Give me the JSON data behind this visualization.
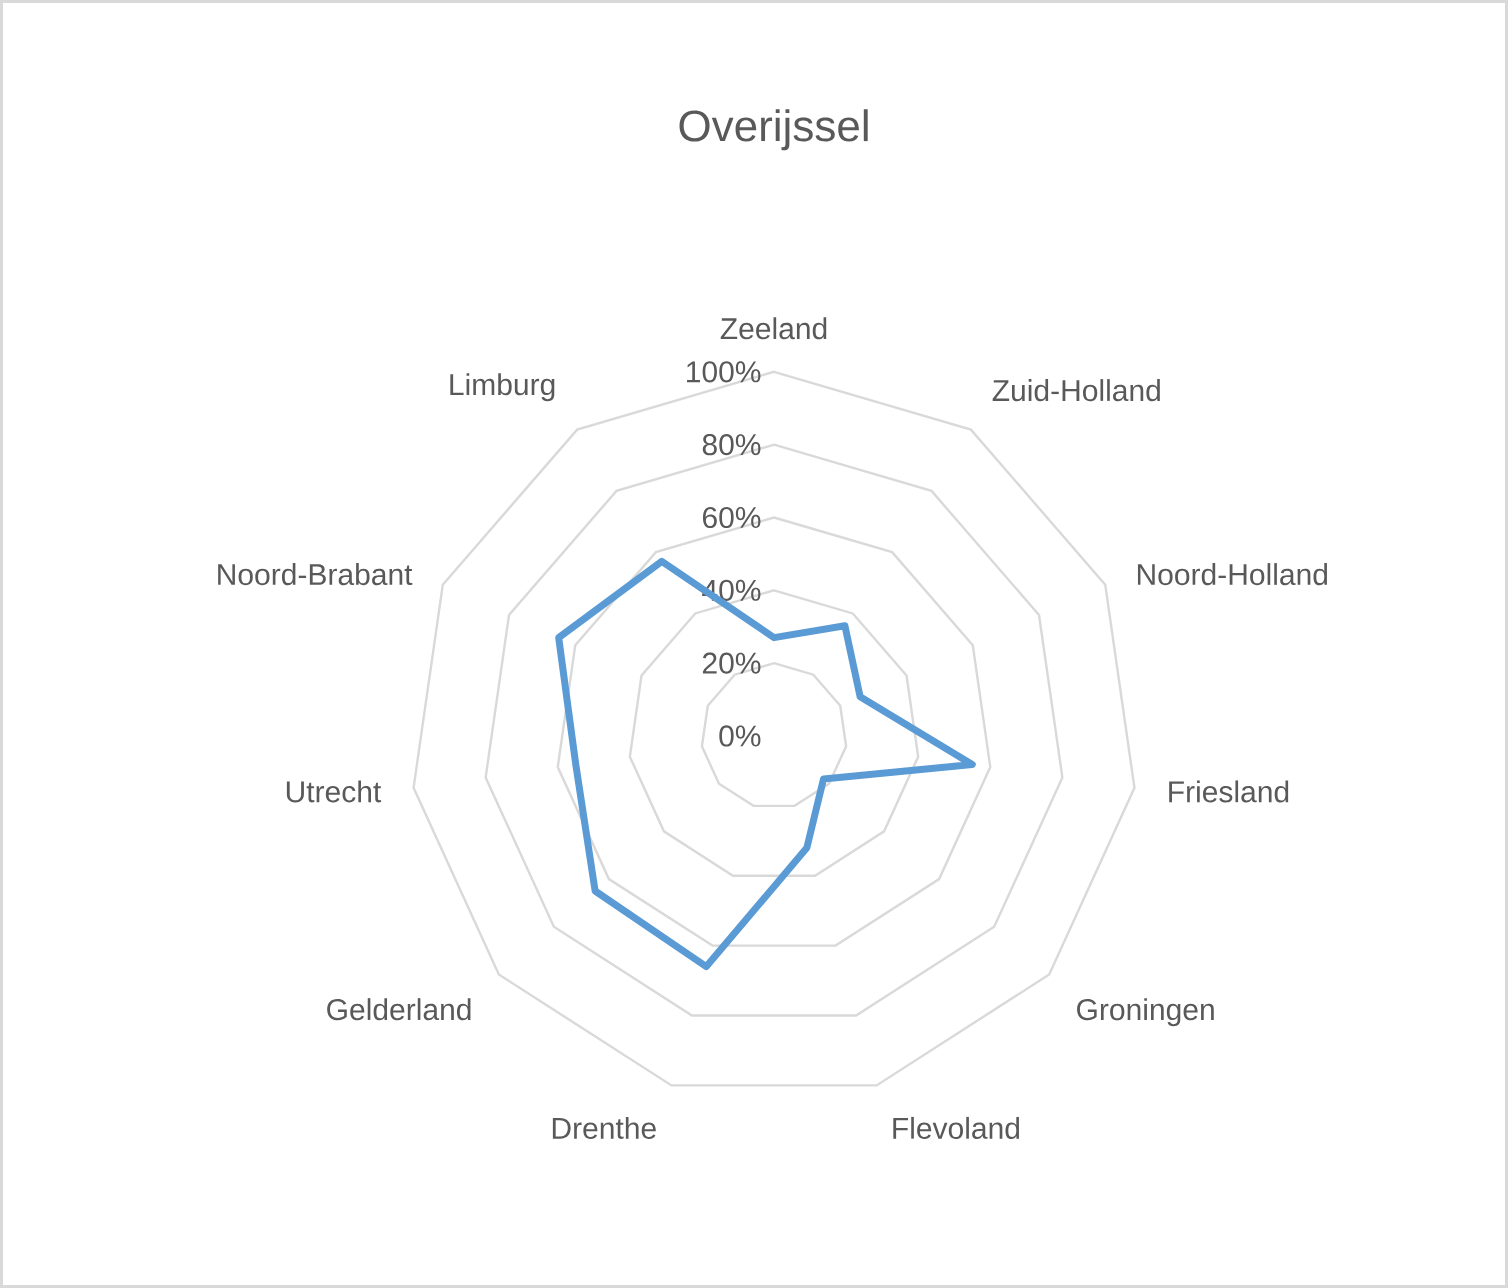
{
  "chart_data": {
    "type": "radar",
    "title": "Overijssel",
    "categories": [
      "Zeeland",
      "Zuid-Holland",
      "Noord-Holland",
      "Friesland",
      "Groningen",
      "Flevoland",
      "Drenthe",
      "Gelderland",
      "Utrecht",
      "Noord-Brabant",
      "Limburg"
    ],
    "series": [
      {
        "color": "#5b9bd5",
        "values": [
          27,
          36,
          26,
          55,
          18,
          32,
          66,
          65,
          55,
          65,
          57
        ]
      }
    ],
    "ylim": [
      0,
      100
    ],
    "yticks": [
      {
        "value": 0,
        "label": "0%"
      },
      {
        "value": 20,
        "label": "20%"
      },
      {
        "value": 40,
        "label": "40%"
      },
      {
        "value": 60,
        "label": "60%"
      },
      {
        "value": 80,
        "label": "80%"
      },
      {
        "value": 100,
        "label": "100%"
      }
    ],
    "grid": true,
    "marker": "none",
    "line_style": "solid"
  }
}
